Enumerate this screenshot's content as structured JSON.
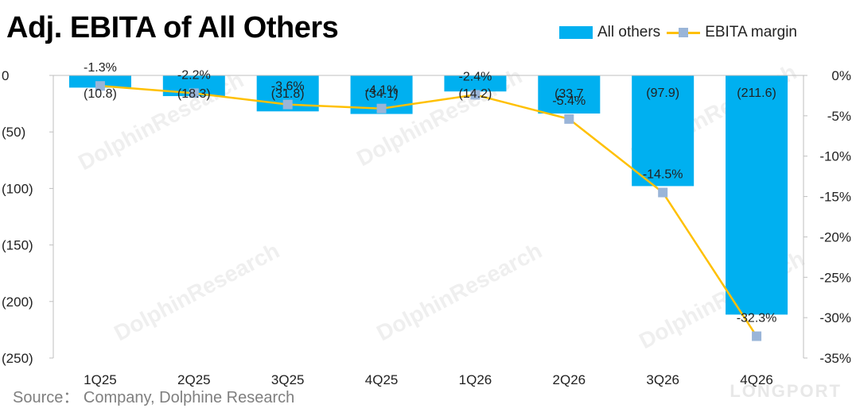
{
  "chart_data": {
    "type": "bar",
    "title": "Adj. EBITA of All Others",
    "categories": [
      "1Q25",
      "2Q25",
      "3Q25",
      "4Q25",
      "1Q26",
      "2Q26",
      "3Q26",
      "4Q26"
    ],
    "series": [
      {
        "name": "All others",
        "type": "bar",
        "axis": "left",
        "color": "#00b0f0",
        "values": [
          -10.8,
          -18.3,
          -31.8,
          -34.1,
          -14.2,
          -33.7,
          -97.9,
          -211.6
        ],
        "labels": [
          "(10.8)",
          "(18.3)",
          "(31.8)",
          "(34.1)",
          "(14.2)",
          "(33.7",
          "(97.9)",
          "(211.6)"
        ]
      },
      {
        "name": "EBITA margin",
        "type": "line",
        "axis": "right",
        "color": "#ffc000",
        "marker_color": "#9ab5d8",
        "values": [
          -1.3,
          -2.2,
          -3.6,
          -4.1,
          -2.4,
          -5.4,
          -14.5,
          -32.3
        ],
        "labels": [
          "-1.3%",
          "-2.2%",
          "-3.6%",
          "-4.1%",
          "-2.4%",
          "-5.4%",
          "-14.5%",
          "-32.3%"
        ]
      }
    ],
    "y_left": {
      "range": [
        -250,
        0
      ],
      "ticks": [
        0,
        -50,
        -100,
        -150,
        -200,
        -250
      ],
      "tick_labels": [
        "0",
        "(50)",
        "(100)",
        "(150)",
        "(200)",
        "(250)"
      ]
    },
    "y_right": {
      "range": [
        -35,
        0
      ],
      "ticks": [
        0,
        -5,
        -10,
        -15,
        -20,
        -25,
        -30,
        -35
      ],
      "tick_labels": [
        "0%",
        "-5%",
        "-10%",
        "-15%",
        "-20%",
        "-25%",
        "-30%",
        "-35%"
      ]
    },
    "grid": false,
    "legend_position": "top-right"
  },
  "source": "Source： Company, Dolphine Research",
  "watermark": "DolphinResearch",
  "brand_watermark": "LONGPORT"
}
